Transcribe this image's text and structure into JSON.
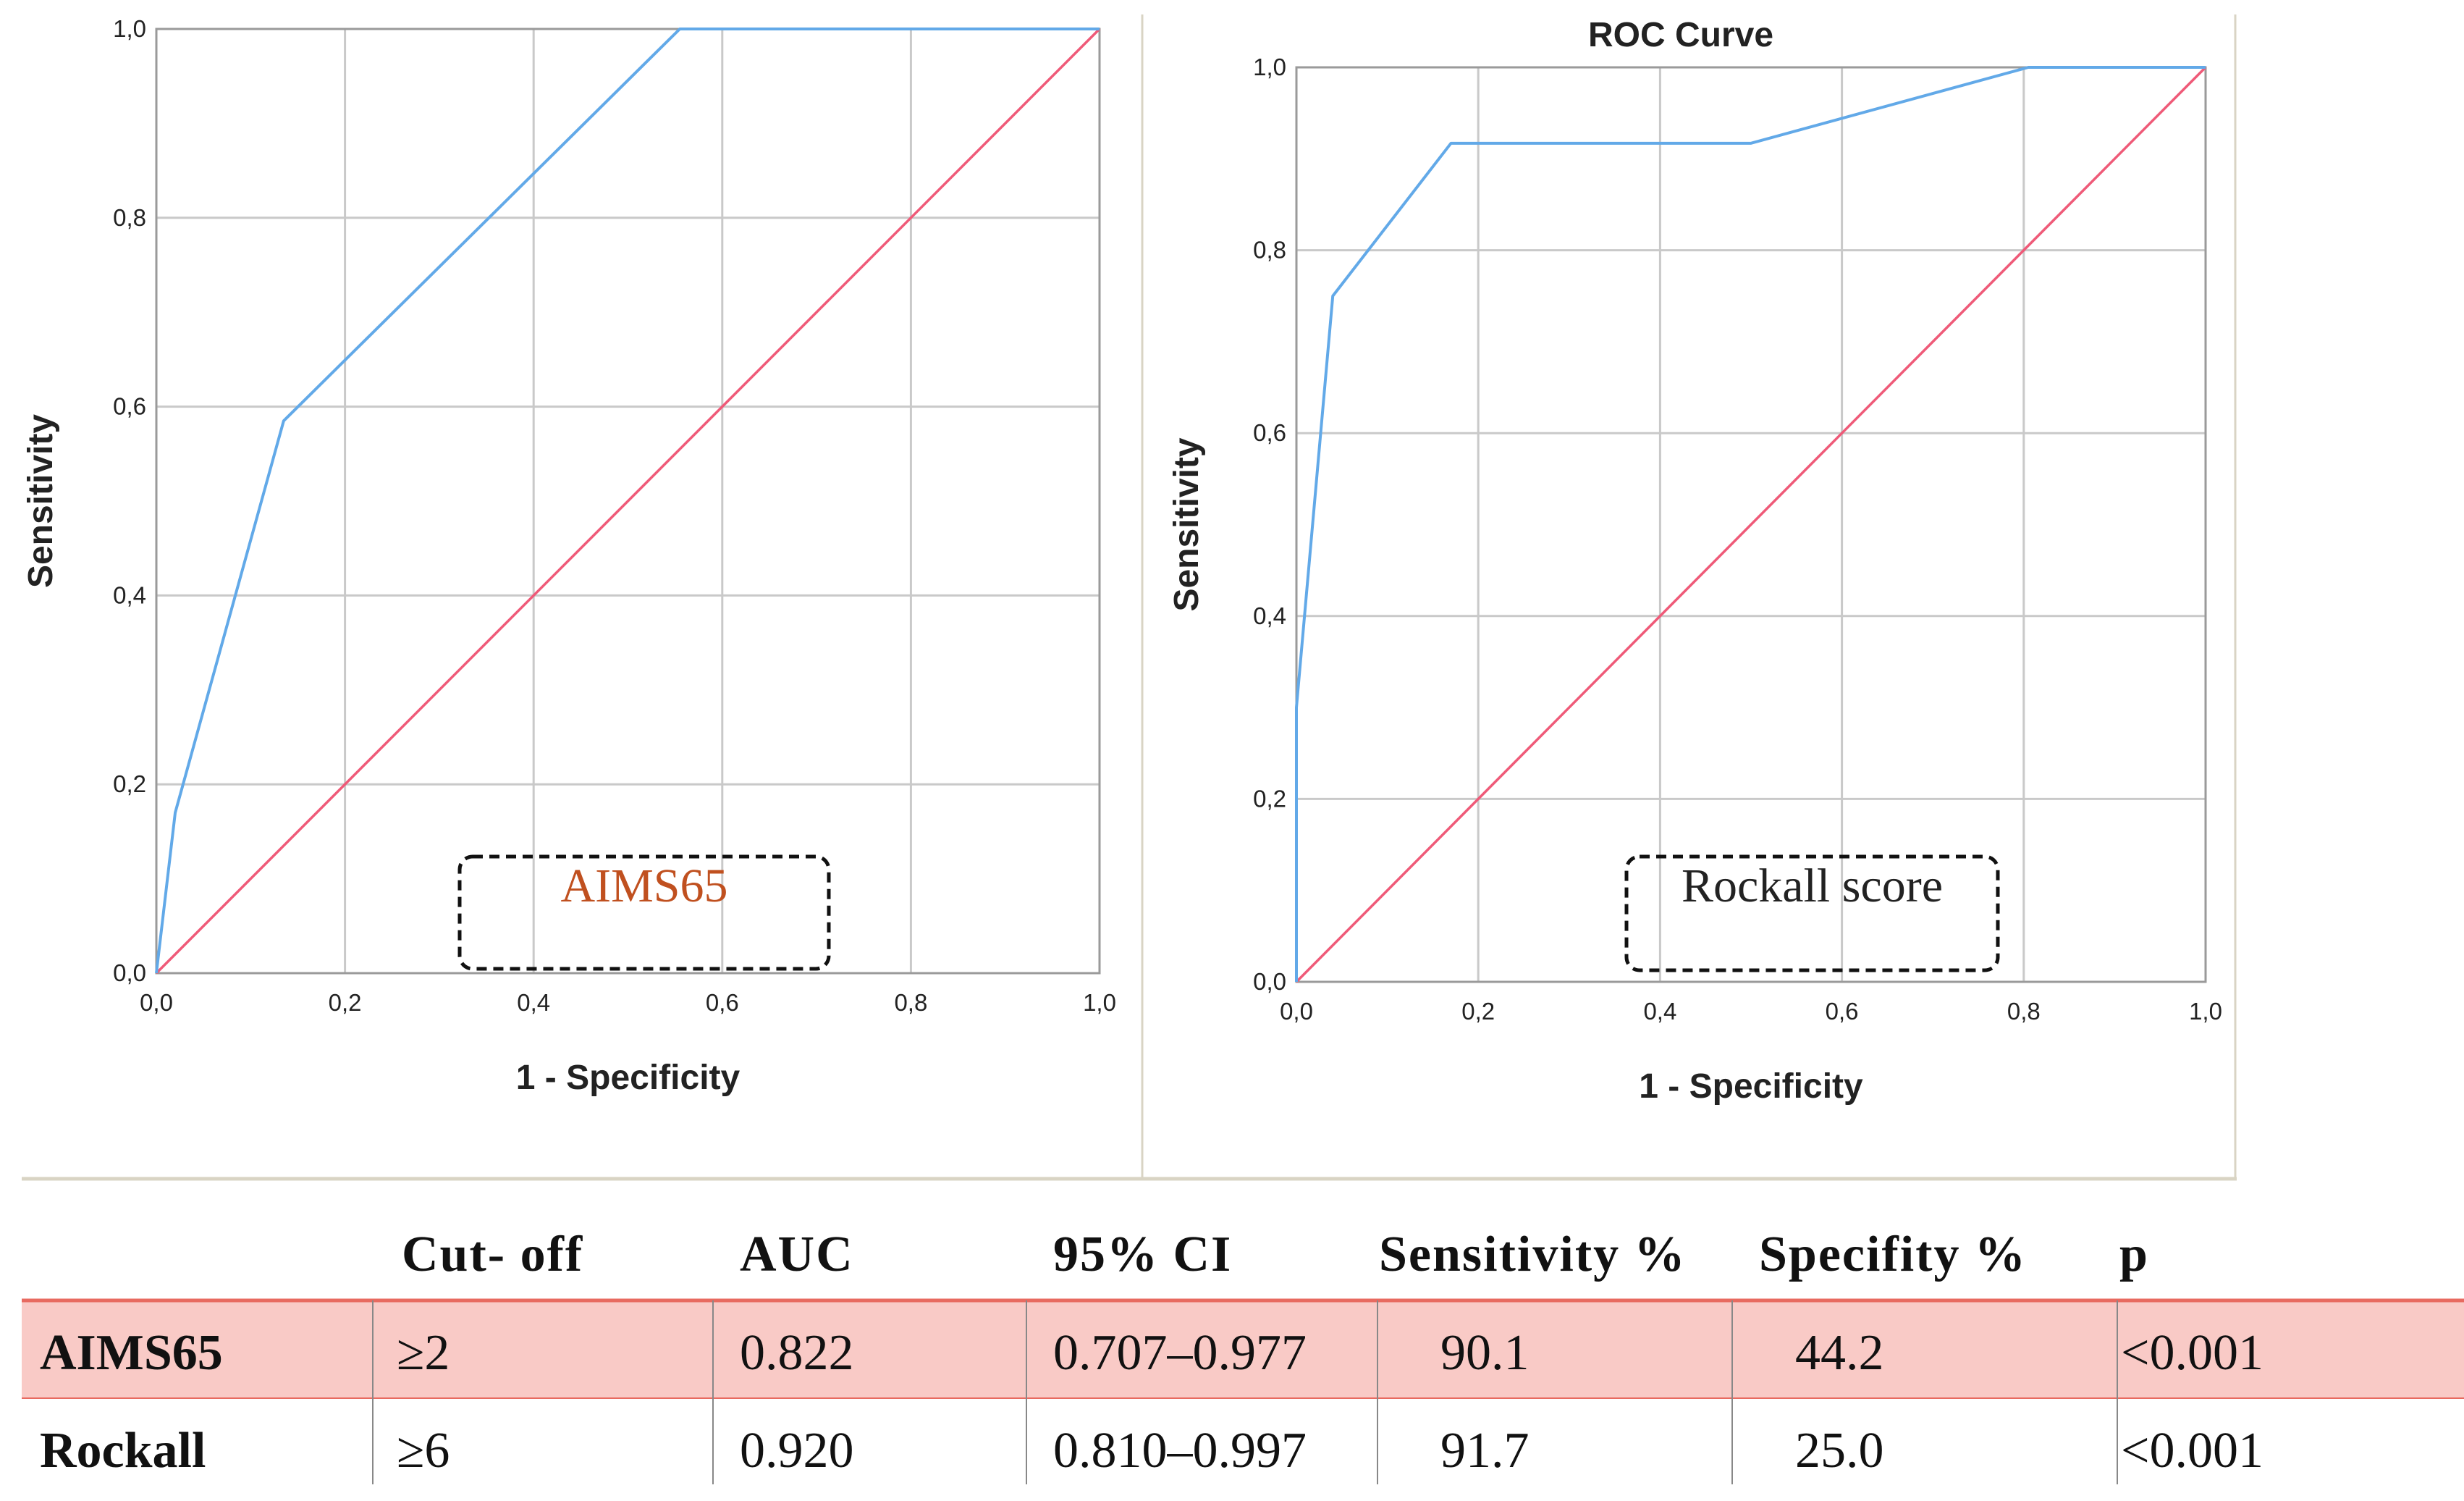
{
  "colors": {
    "roc_curve": "#62a9e8",
    "reference_line": "#ef5a78",
    "grid": "#c9c9c9",
    "panel_border": "#d9d4c4",
    "highlight_row": "#f9cac6",
    "highlight_line": "#e86a60",
    "aims_label": "#c0501f"
  },
  "chart_data": [
    {
      "type": "line",
      "title": "",
      "xlabel": "1 - Specificity",
      "ylabel": "Sensitivity",
      "xlim": [
        0,
        1
      ],
      "ylim": [
        0,
        1
      ],
      "grid": true,
      "x_tick_labels": [
        "0,0",
        "0,2",
        "0,4",
        "0,6",
        "0,8",
        "1,0"
      ],
      "y_tick_labels": [
        "0,0",
        "0,2",
        "0,4",
        "0,6",
        "0,8",
        "1,0"
      ],
      "annotation": "AIMS65",
      "series": [
        {
          "name": "ROC",
          "x": [
            0,
            0.02,
            0.135,
            0.555,
            1.0
          ],
          "y": [
            0,
            0.17,
            0.585,
            1.0,
            1.0
          ]
        },
        {
          "name": "Reference Line",
          "x": [
            0,
            1
          ],
          "y": [
            0,
            1
          ]
        }
      ]
    },
    {
      "type": "line",
      "title": "ROC Curve",
      "xlabel": "1 - Specificity",
      "ylabel": "Sensitivity",
      "xlim": [
        0,
        1
      ],
      "ylim": [
        0,
        1
      ],
      "grid": true,
      "x_tick_labels": [
        "0,0",
        "0,2",
        "0,4",
        "0,6",
        "0,8",
        "1,0"
      ],
      "y_tick_labels": [
        "0,0",
        "0,2",
        "0,4",
        "0,6",
        "0,8",
        "1,0"
      ],
      "annotation": "Rockall score",
      "series": [
        {
          "name": "ROC",
          "x": [
            0,
            0,
            0.04,
            0.17,
            0.5,
            0.805,
            1.0
          ],
          "y": [
            0,
            0.3,
            0.75,
            0.917,
            0.917,
            1.0,
            1.0
          ]
        },
        {
          "name": "Reference Line",
          "x": [
            0,
            1
          ],
          "y": [
            0,
            1
          ]
        }
      ]
    },
    {
      "type": "table",
      "columns": [
        "",
        "Cut- off",
        "AUC",
        "95% CI",
        "Sensitivity %",
        "Specifity %",
        "p"
      ],
      "rows": [
        [
          "AIMS65",
          "≥2",
          "0.822",
          "0.707–0.977",
          "90.1",
          "44.2",
          "<0.001"
        ],
        [
          "Rockall",
          "≥6",
          "0.920",
          "0.810–0.997",
          "91.7",
          "25.0",
          "<0.001"
        ]
      ],
      "highlighted_row": 0
    }
  ]
}
